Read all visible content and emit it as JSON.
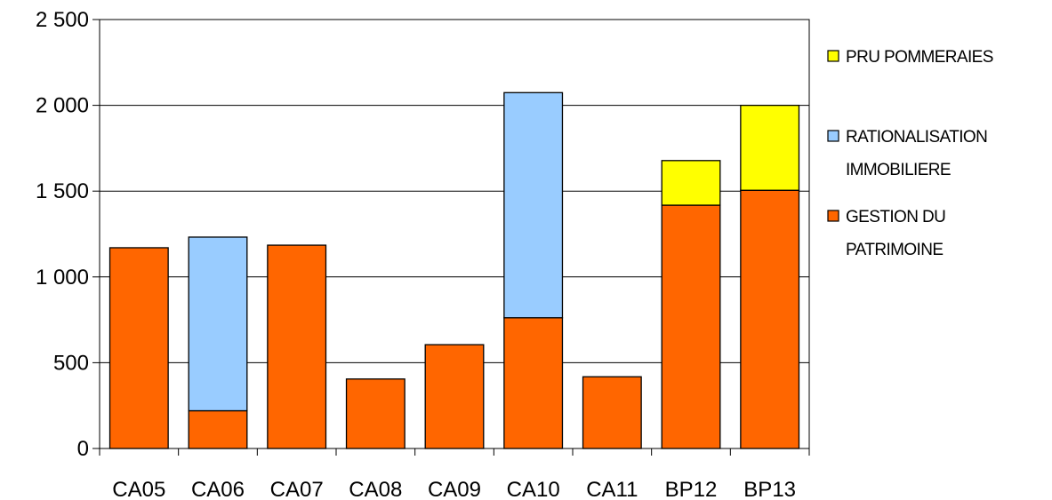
{
  "chart_data": {
    "type": "bar",
    "stacked": true,
    "title": "",
    "xlabel": "",
    "ylabel": "",
    "categories": [
      "CA05",
      "CA06",
      "CA07",
      "CA08",
      "CA09",
      "CA10",
      "CA11",
      "BP12",
      "BP13"
    ],
    "series": [
      {
        "name": "GESTION DU PATRIMOINE",
        "legend_lines": [
          "GESTION DU",
          "PATRIMOINE"
        ],
        "color": "#ff6600",
        "values": [
          1170,
          220,
          1185,
          405,
          605,
          762,
          418,
          1418,
          1505
        ]
      },
      {
        "name": "RATIONALISATION IMMOBILIERE",
        "legend_lines": [
          "RATIONALISATION",
          "IMMOBILIERE"
        ],
        "color": "#99ccff",
        "values": [
          0,
          1012,
          0,
          0,
          0,
          1312,
          0,
          0,
          0
        ]
      },
      {
        "name": "PRU POMMERAIES",
        "legend_lines": [
          "PRU POMMERAIES"
        ],
        "color": "#ffff00",
        "values": [
          0,
          0,
          0,
          0,
          0,
          0,
          0,
          260,
          495
        ]
      }
    ],
    "ylim": [
      0,
      2500
    ],
    "yticks": [
      0,
      500,
      1000,
      1500,
      2000,
      2500
    ],
    "ytick_labels": [
      "0",
      "500",
      "1 000",
      "1 500",
      "2 000",
      "2 500"
    ],
    "grid": true,
    "legend_position": "right",
    "legend_order": [
      2,
      1,
      0
    ]
  }
}
